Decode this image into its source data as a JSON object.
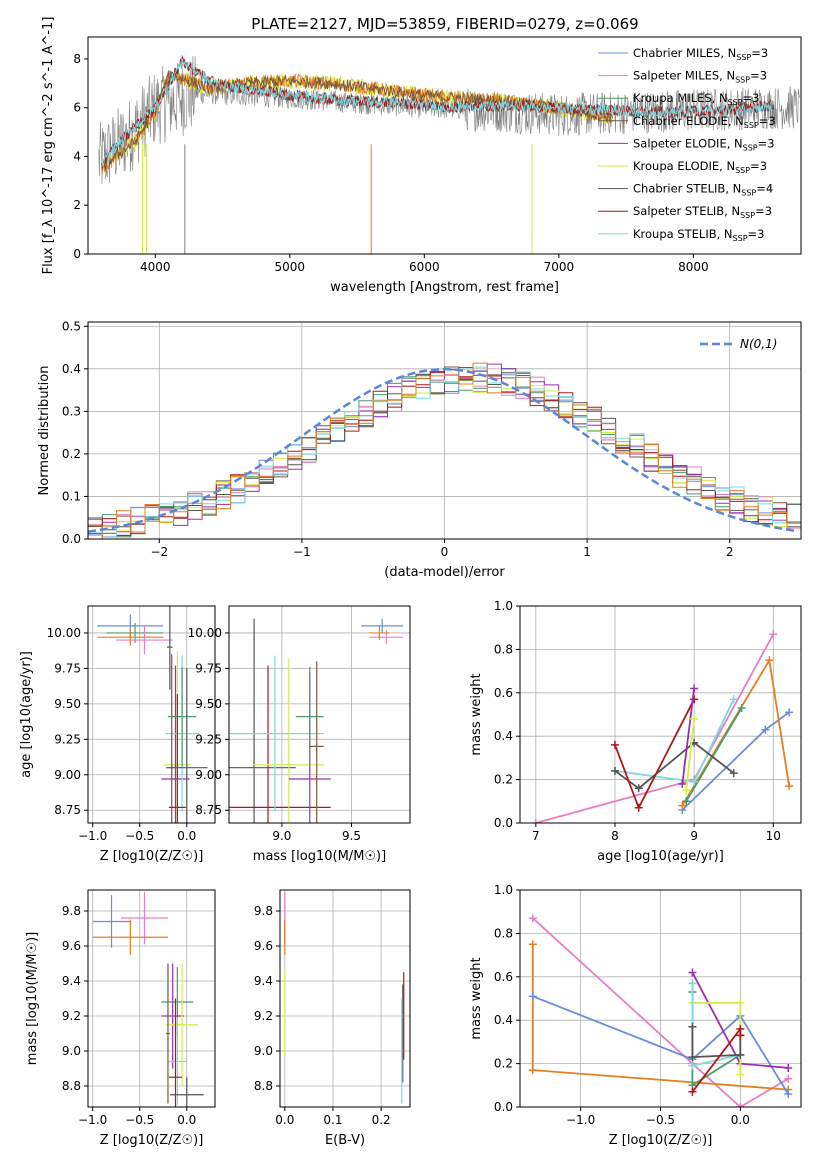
{
  "figure": {
    "title": "PLATE=2127, MJD=53859, FIBERID=0279, z=0.069"
  },
  "colors": {
    "Chabrier MILES": "#6a8ddb",
    "Salpeter MILES": "#e67fbf",
    "Kroupa MILES": "#4a9c6a",
    "Chabrier ELODIE": "#7a5a3a",
    "Salpeter ELODIE": "#9b2fb0",
    "Kroupa ELODIE": "#d4ec4a",
    "Chabrier STELIB": "#555555",
    "Salpeter STELIB": "#b01818",
    "Kroupa STELIB": "#7fd9dd",
    "orange": "#e67e22",
    "data": "#7f7f7f",
    "normal": "#5b87d6",
    "grid": "#b0b0b0"
  },
  "chart_data": [
    {
      "id": "spectrum",
      "type": "line",
      "title": "PLATE=2127, MJD=53859, FIBERID=0279, z=0.069",
      "xlabel": "wavelength [Angstrom, rest frame]",
      "ylabel": "Flux [f_λ 10^-17 erg cm^-2 s^-1 A^-1]",
      "xlim": [
        3500,
        8800
      ],
      "ylim": [
        0,
        8.9
      ],
      "xticks": [
        4000,
        5000,
        6000,
        7000,
        8000
      ],
      "yticks": [
        0,
        2,
        4,
        6,
        8
      ],
      "legend_position": "top-right",
      "legend": [
        "Chabrier MILES, N_SSP=3",
        "Salpeter MILES, N_SSP=3",
        "Kroupa MILES, N_SSP=3",
        "Chabrier ELODIE, N_SSP=3",
        "Salpeter ELODIE, N_SSP=3",
        "Kroupa ELODIE, N_SSP=3",
        "Chabrier STELIB, N_SSP=4",
        "Salpeter STELIB, N_SSP=3",
        "Kroupa STELIB, N_SSP=3"
      ],
      "model_continuum": {
        "x": [
          3600,
          3700,
          3850,
          4000,
          4100,
          4200,
          4400,
          4700,
          5000,
          5300,
          5600,
          6000,
          6500,
          7000,
          7400
        ],
        "y": [
          3.5,
          4.0,
          4.6,
          5.9,
          7.3,
          7.2,
          6.8,
          7.0,
          7.1,
          7.0,
          6.8,
          6.5,
          6.3,
          6.0,
          5.6
        ]
      },
      "stelib_continuum": {
        "x": [
          3600,
          3700,
          4000,
          4200,
          4400,
          4600,
          4800,
          5000,
          5400,
          5800,
          6200,
          6600,
          7000,
          7400,
          7800,
          8200,
          8600
        ],
        "y": [
          3.6,
          4.4,
          6.0,
          7.9,
          7.1,
          6.8,
          6.7,
          6.5,
          6.3,
          6.2,
          6.0,
          6.1,
          6.0,
          5.9,
          5.8,
          5.9,
          6.1
        ]
      },
      "data_spectrum": {
        "x": [
          3580,
          3800,
          4000,
          4300,
          4700,
          5000,
          5500,
          6000,
          6500,
          7000,
          7500,
          8000,
          8500,
          8800
        ],
        "y": [
          3.8,
          4.8,
          6.0,
          6.6,
          6.5,
          6.4,
          6.2,
          6.0,
          5.9,
          5.7,
          5.8,
          5.9,
          6.0,
          6.0
        ]
      }
    },
    {
      "id": "residuals",
      "type": "bar",
      "xlabel": "(data-model)/error",
      "ylabel": "Normed distribution",
      "xlim": [
        -2.5,
        2.5
      ],
      "ylim": [
        0,
        0.51
      ],
      "xticks": [
        -2,
        -1,
        0,
        1,
        2
      ],
      "yticks": [
        0.0,
        0.1,
        0.2,
        0.3,
        0.4,
        0.5
      ],
      "legend": [
        "N(0,1)"
      ],
      "legend_position": "top-right",
      "normal_curve": {
        "mean": 0,
        "sigma": 1
      }
    },
    {
      "id": "age_vs_Z",
      "type": "scatter",
      "xlabel": "Z [log10(Z/Z☉)]",
      "ylabel": "age [log10(age/yr)]",
      "xlim": [
        -1.05,
        0.3
      ],
      "ylim": [
        8.66,
        10.19
      ],
      "xticks": [
        -1.0,
        -0.5,
        0.0
      ],
      "yticks": [
        8.75,
        9.0,
        9.25,
        9.5,
        9.75,
        10.0
      ],
      "errorbars": [
        {
          "model": "Chabrier MILES",
          "x": -0.6,
          "y": 10.05,
          "dx": 0.35,
          "dy": 0.08
        },
        {
          "model": "Kroupa MILES",
          "x": -0.55,
          "y": 10.0,
          "dx": 0.3,
          "dy": 0.07
        },
        {
          "model": "Salpeter MILES",
          "x": -0.45,
          "y": 9.95,
          "dx": 0.3,
          "dy": 0.1
        },
        {
          "model": "orange",
          "x": -0.6,
          "y": 9.97,
          "dx": 0.35,
          "dy": 0.06
        },
        {
          "model": "Chabrier STELIB",
          "x": -0.18,
          "y": 9.9,
          "dx": 0.03,
          "dy": 0.3
        },
        {
          "model": "Kroupa ELODIE",
          "x": -0.1,
          "y": 9.07,
          "dx": 0.15,
          "dy": 0.8
        },
        {
          "model": "Salpeter ELODIE",
          "x": -0.12,
          "y": 8.97,
          "dx": 0.15,
          "dy": 0.8
        },
        {
          "model": "Kroupa STELIB",
          "x": -0.05,
          "y": 9.29,
          "dx": 0.18,
          "dy": 0.55
        },
        {
          "model": "Kroupa MILES",
          "x": -0.05,
          "y": 9.41,
          "dx": 0.15,
          "dy": 0.35
        },
        {
          "model": "Chabrier ELODIE",
          "x": -0.16,
          "y": 9.05,
          "dx": 0.02,
          "dy": 0.8
        },
        {
          "model": "Salpeter STELIB",
          "x": -0.1,
          "y": 8.77,
          "dx": 0.09,
          "dy": 0.8
        },
        {
          "model": "Chabrier STELIB",
          "x": 0.0,
          "y": 9.05,
          "dx": 0.22,
          "dy": 0.7
        }
      ]
    },
    {
      "id": "age_vs_mass",
      "type": "scatter",
      "xlabel": "mass [log10(M/M☉)]",
      "xlim": [
        8.62,
        9.92
      ],
      "ylim": [
        8.66,
        10.19
      ],
      "xticks": [
        9.0,
        9.5
      ],
      "yticks": [
        8.75,
        9.0,
        9.25,
        9.5,
        9.75,
        10.0
      ],
      "errorbars": [
        {
          "model": "Chabrier MILES",
          "x": 9.72,
          "y": 10.05,
          "dx": 0.15,
          "dy": 0.05
        },
        {
          "model": "Salpeter MILES",
          "x": 9.75,
          "y": 9.97,
          "dx": 0.12,
          "dy": 0.05
        },
        {
          "model": "orange",
          "x": 9.7,
          "y": 10.0,
          "dx": 0.07,
          "dy": 0.05
        },
        {
          "model": "Chabrier STELIB",
          "x": 8.8,
          "y": 9.05,
          "dx": 0.3,
          "dy": 1.05
        },
        {
          "model": "Salpeter STELIB",
          "x": 8.9,
          "y": 8.77,
          "dx": 0.45,
          "dy": 1.0
        },
        {
          "model": "Kroupa STELIB",
          "x": 8.95,
          "y": 9.29,
          "dx": 0.35,
          "dy": 0.55
        },
        {
          "model": "Kroupa ELODIE",
          "x": 9.05,
          "y": 9.07,
          "dx": 0.25,
          "dy": 0.75
        },
        {
          "model": "Salpeter ELODIE",
          "x": 9.2,
          "y": 8.97,
          "dx": 0.15,
          "dy": 0.75
        },
        {
          "model": "Kroupa MILES",
          "x": 9.2,
          "y": 9.41,
          "dx": 0.1,
          "dy": 0.35
        },
        {
          "model": "Chabrier ELODIE",
          "x": 9.25,
          "y": 9.2,
          "dx": 0.05,
          "dy": 0.6
        }
      ]
    },
    {
      "id": "weight_vs_age",
      "type": "line",
      "xlabel": "age [log10(age/yr)]",
      "ylabel": "mass weight",
      "xlim": [
        6.8,
        10.35
      ],
      "ylim": [
        0,
        1.0
      ],
      "xticks": [
        7,
        8,
        9,
        10
      ],
      "yticks": [
        0.0,
        0.2,
        0.4,
        0.6,
        0.8,
        1.0
      ],
      "series": [
        {
          "model": "Salpeter MILES",
          "x": [
            7.0,
            9.0,
            10.0
          ],
          "y": [
            0.0,
            0.2,
            0.87
          ]
        },
        {
          "model": "Chabrier MILES",
          "x": [
            8.85,
            9.9,
            10.2
          ],
          "y": [
            0.06,
            0.43,
            0.51
          ]
        },
        {
          "model": "orange",
          "x": [
            8.85,
            9.95,
            10.2
          ],
          "y": [
            0.08,
            0.75,
            0.17
          ]
        },
        {
          "model": "Kroupa MILES",
          "x": [
            8.9,
            9.6
          ],
          "y": [
            0.1,
            0.53
          ]
        },
        {
          "model": "Kroupa STELIB",
          "x": [
            8.0,
            9.0,
            9.5
          ],
          "y": [
            0.24,
            0.19,
            0.57
          ]
        },
        {
          "model": "Chabrier STELIB",
          "x": [
            8.0,
            8.3,
            9.0,
            9.5
          ],
          "y": [
            0.24,
            0.16,
            0.37,
            0.23
          ]
        },
        {
          "model": "Salpeter STELIB",
          "x": [
            8.0,
            8.3,
            9.0
          ],
          "y": [
            0.36,
            0.07,
            0.57
          ]
        },
        {
          "model": "Salpeter ELODIE",
          "x": [
            8.85,
            9.0
          ],
          "y": [
            0.18,
            0.62
          ]
        },
        {
          "model": "Kroupa ELODIE",
          "x": [
            8.9,
            9.0
          ],
          "y": [
            0.15,
            0.48
          ]
        }
      ]
    },
    {
      "id": "mass_vs_Z",
      "type": "scatter",
      "xlabel": "Z [log10(Z/Z☉)]",
      "ylabel": "mass [log10(M/M☉)]",
      "xlim": [
        -1.05,
        0.3
      ],
      "ylim": [
        8.68,
        9.92
      ],
      "xticks": [
        -1.0,
        -0.5,
        0.0
      ],
      "yticks": [
        8.8,
        9.0,
        9.2,
        9.4,
        9.6,
        9.8
      ],
      "errorbars": [
        {
          "model": "Chabrier MILES",
          "x": -0.8,
          "y": 9.74,
          "dx": 0.2,
          "dy": 0.15
        },
        {
          "model": "Salpeter MILES",
          "x": -0.45,
          "y": 9.76,
          "dx": 0.25,
          "dy": 0.15
        },
        {
          "model": "orange",
          "x": -0.6,
          "y": 9.65,
          "dx": 0.4,
          "dy": 0.1
        },
        {
          "model": "Kroupa MILES",
          "x": -0.1,
          "y": 9.28,
          "dx": 0.17,
          "dy": 0.2
        },
        {
          "model": "Salpeter ELODIE",
          "x": -0.15,
          "y": 9.2,
          "dx": 0.12,
          "dy": 0.3
        },
        {
          "model": "Kroupa ELODIE",
          "x": -0.05,
          "y": 9.15,
          "dx": 0.17,
          "dy": 0.35
        },
        {
          "model": "Kroupa STELIB",
          "x": -0.1,
          "y": 8.94,
          "dx": 0.1,
          "dy": 0.25
        },
        {
          "model": "Salpeter STELIB",
          "x": -0.12,
          "y": 8.85,
          "dx": 0.07,
          "dy": 0.45
        },
        {
          "model": "Chabrier STELIB",
          "x": 0.0,
          "y": 8.75,
          "dx": 0.18,
          "dy": 0.1
        },
        {
          "model": "Chabrier ELODIE",
          "x": -0.2,
          "y": 9.1,
          "dx": 0.02,
          "dy": 0.4
        }
      ]
    },
    {
      "id": "mass_vs_EBV",
      "type": "scatter",
      "xlabel": "E(B-V)",
      "xlim": [
        -0.01,
        0.26
      ],
      "ylim": [
        8.68,
        9.92
      ],
      "xticks": [
        0.0,
        0.1,
        0.2
      ],
      "yticks": [
        8.8,
        9.0,
        9.2,
        9.4,
        9.6,
        9.8
      ],
      "errorbars": [
        {
          "model": "Salpeter MILES",
          "x": 0.0,
          "y": 9.76,
          "dx": 0.0,
          "dy": 0.15
        },
        {
          "model": "orange",
          "x": 0.0,
          "y": 9.65,
          "dx": 0.0,
          "dy": 0.1
        },
        {
          "model": "Kroupa ELODIE",
          "x": 0.0,
          "y": 9.22,
          "dx": 0.0,
          "dy": 0.25
        },
        {
          "model": "Salpeter STELIB",
          "x": 0.247,
          "y": 9.2,
          "dx": 0.0,
          "dy": 0.25
        },
        {
          "model": "Chabrier STELIB",
          "x": 0.245,
          "y": 9.1,
          "dx": 0.0,
          "dy": 0.28
        },
        {
          "model": "Kroupa STELIB",
          "x": 0.243,
          "y": 9.0,
          "dx": 0.0,
          "dy": 0.3
        }
      ]
    },
    {
      "id": "weight_vs_Z",
      "type": "line",
      "xlabel": "Z [log10(Z/Z☉)]",
      "ylabel": "mass weight",
      "xlim": [
        -1.38,
        0.38
      ],
      "ylim": [
        0,
        1.0
      ],
      "xticks": [
        -1.0,
        -0.5,
        0.0
      ],
      "yticks": [
        0.0,
        0.2,
        0.4,
        0.6,
        0.8,
        1.0
      ],
      "series": [
        {
          "model": "Salpeter MILES",
          "x": [
            -1.3,
            -0.3,
            0.0,
            0.3
          ],
          "y": [
            0.87,
            0.2,
            0.0,
            0.13
          ]
        },
        {
          "model": "orange",
          "x": [
            -1.3,
            -1.3,
            0.3
          ],
          "y": [
            0.75,
            0.17,
            0.08
          ]
        },
        {
          "model": "Chabrier MILES",
          "x": [
            -1.3,
            -0.3,
            0.0,
            0.3
          ],
          "y": [
            0.51,
            0.22,
            0.42,
            0.06
          ]
        },
        {
          "model": "Kroupa MILES",
          "x": [
            -0.3,
            -0.3,
            0.0
          ],
          "y": [
            0.53,
            0.1,
            0.24
          ]
        },
        {
          "model": "Salpeter ELODIE",
          "x": [
            -0.3,
            0.0,
            0.3
          ],
          "y": [
            0.62,
            0.2,
            0.18
          ]
        },
        {
          "model": "Kroupa ELODIE",
          "x": [
            -0.3,
            0.0,
            0.0
          ],
          "y": [
            0.48,
            0.48,
            0.15
          ]
        },
        {
          "model": "Kroupa STELIB",
          "x": [
            -0.3,
            -0.3,
            0.0
          ],
          "y": [
            0.57,
            0.19,
            0.24
          ]
        },
        {
          "model": "Chabrier STELIB",
          "x": [
            -0.3,
            -0.3,
            0.0,
            0.0
          ],
          "y": [
            0.37,
            0.23,
            0.24,
            0.33
          ]
        },
        {
          "model": "Salpeter STELIB",
          "x": [
            -0.3,
            0.0,
            0.0
          ],
          "y": [
            0.07,
            0.36,
            0.33
          ]
        }
      ]
    }
  ]
}
